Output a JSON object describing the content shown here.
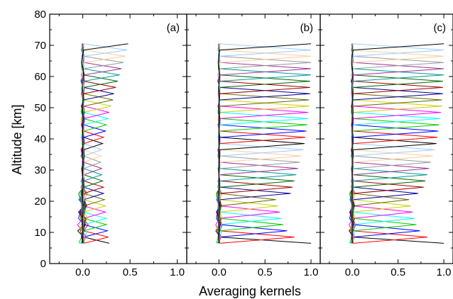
{
  "chart_data": [
    {
      "type": "line",
      "panel_label": "(a)",
      "xlim": [
        -0.35,
        1.1
      ],
      "xticks": [
        0.0,
        0.5,
        1.0
      ],
      "xtick_labels": [
        "0.0",
        "0.5",
        "1.0"
      ],
      "ylim": [
        0,
        80
      ],
      "yticks": [
        0,
        10,
        20,
        30,
        40,
        50,
        60,
        70,
        80
      ],
      "ytick_labels": [
        "0",
        "10",
        "20",
        "30",
        "40",
        "50",
        "60",
        "70",
        "80"
      ],
      "altitude_range_km": [
        6.5,
        70.5
      ],
      "n_kernels": 33,
      "kernel_peak_values": [
        0.28,
        0.27,
        0.26,
        0.25,
        0.25,
        0.24,
        0.24,
        0.23,
        0.22,
        0.22,
        0.21,
        0.2,
        0.2,
        0.19,
        0.19,
        0.2,
        0.21,
        0.22,
        0.24,
        0.25,
        0.27,
        0.28,
        0.3,
        0.32,
        0.33,
        0.35,
        0.37,
        0.39,
        0.41,
        0.43,
        0.45,
        0.47,
        0.48
      ],
      "kernel_colors": [
        "#000000",
        "#ff0000",
        "#0000ff",
        "#00cc00",
        "#00ffff",
        "#ff00ff",
        "#cccc00",
        "#666600",
        "#000099",
        "#990000",
        "#006600",
        "#009999",
        "#993399",
        "#999999",
        "#ffcc99",
        "#99ccff"
      ]
    },
    {
      "type": "line",
      "panel_label": "(b)",
      "xlim": [
        -0.35,
        1.1
      ],
      "xticks": [
        0.0,
        0.5,
        1.0
      ],
      "xtick_labels": [
        "0.0",
        "0.5",
        "1.0"
      ],
      "ylim": [
        0,
        80
      ],
      "yticks": [
        0,
        10,
        20,
        30,
        40,
        50,
        60,
        70,
        80
      ],
      "altitude_range_km": [
        6.5,
        70.5
      ],
      "n_kernels": 33,
      "kernel_peak_values": [
        1.0,
        0.82,
        0.74,
        0.7,
        0.68,
        0.66,
        0.64,
        0.62,
        0.78,
        0.8,
        0.82,
        0.84,
        0.86,
        0.88,
        0.9,
        0.92,
        0.93,
        0.94,
        0.95,
        0.96,
        0.97,
        0.97,
        0.98,
        0.98,
        0.99,
        0.99,
        0.99,
        1.0,
        1.0,
        1.0,
        1.0,
        1.0,
        1.0
      ],
      "kernel_colors": [
        "#000000",
        "#ff0000",
        "#0000ff",
        "#00cc00",
        "#00ffff",
        "#ff00ff",
        "#cccc00",
        "#666600",
        "#000099",
        "#990000",
        "#006600",
        "#009999",
        "#993399",
        "#999999",
        "#ffcc99",
        "#99ccff"
      ]
    },
    {
      "type": "line",
      "panel_label": "(c)",
      "xlim": [
        -0.35,
        1.1
      ],
      "xticks": [
        0.0,
        0.5,
        1.0
      ],
      "xtick_labels": [
        "0.0",
        "0.5",
        "1.0"
      ],
      "ylim": [
        0,
        80
      ],
      "yticks": [
        0,
        10,
        20,
        30,
        40,
        50,
        60,
        70,
        80
      ],
      "altitude_range_km": [
        6.5,
        70.5
      ],
      "n_kernels": 33,
      "kernel_peak_values": [
        1.0,
        0.82,
        0.74,
        0.7,
        0.68,
        0.66,
        0.64,
        0.62,
        0.72,
        0.78,
        0.8,
        0.82,
        0.84,
        0.86,
        0.88,
        0.9,
        0.92,
        0.93,
        0.94,
        0.95,
        0.96,
        0.97,
        0.98,
        0.98,
        0.99,
        0.99,
        0.99,
        1.0,
        1.0,
        1.0,
        1.0,
        1.0,
        1.0
      ],
      "kernel_colors": [
        "#000000",
        "#ff0000",
        "#0000ff",
        "#00cc00",
        "#00ffff",
        "#ff00ff",
        "#cccc00",
        "#666600",
        "#000099",
        "#990000",
        "#006600",
        "#009999",
        "#993399",
        "#999999",
        "#ffcc99",
        "#99ccff"
      ]
    }
  ],
  "labels": {
    "xlabel": "Averaging kernels",
    "ylabel": "Altitude [km]"
  }
}
